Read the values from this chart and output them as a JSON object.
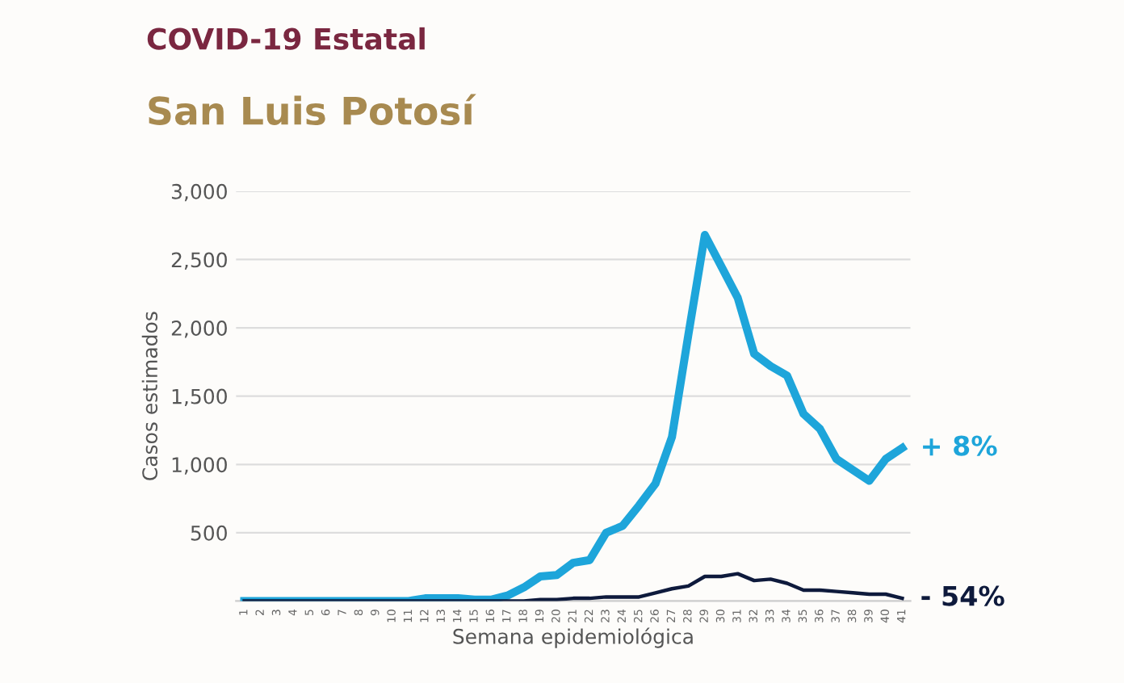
{
  "chart_data": {
    "type": "line",
    "title": "COVID-19 Estatal",
    "subtitle": "San Luis Potosí",
    "xlabel": "Semana epidemiológica",
    "ylabel": "Casos estimados",
    "categories": [
      "1",
      "2",
      "3",
      "4",
      "5",
      "6",
      "7",
      "8",
      "9",
      "10",
      "11",
      "12",
      "13",
      "14",
      "15",
      "16",
      "17",
      "18",
      "19",
      "20",
      "21",
      "22",
      "23",
      "24",
      "25",
      "26",
      "27",
      "28",
      "29",
      "30",
      "31",
      "32",
      "33",
      "34",
      "35",
      "36",
      "37",
      "38",
      "39",
      "40",
      "41"
    ],
    "series": [
      {
        "color": "#1ea5da",
        "values": [
          0,
          0,
          0,
          0,
          0,
          0,
          0,
          0,
          0,
          0,
          0,
          20,
          20,
          20,
          10,
          10,
          40,
          100,
          180,
          190,
          280,
          300,
          500,
          550,
          700,
          860,
          1200,
          1950,
          2680,
          2450,
          2220,
          1810,
          1720,
          1650,
          1370,
          1260,
          1040,
          960,
          880,
          1040,
          1120
        ]
      },
      {
        "color": "#0e1a3c",
        "values": [
          0,
          0,
          0,
          0,
          0,
          0,
          0,
          0,
          0,
          0,
          0,
          0,
          0,
          0,
          0,
          0,
          0,
          0,
          10,
          10,
          20,
          20,
          30,
          30,
          30,
          60,
          90,
          110,
          180,
          180,
          200,
          150,
          160,
          130,
          80,
          80,
          70,
          60,
          50,
          50,
          20
        ]
      }
    ],
    "ylim": [
      0,
      3000
    ],
    "yticks": [
      {
        "value": 500,
        "label": "500"
      },
      {
        "value": 1000,
        "label": "1,000"
      },
      {
        "value": 1500,
        "label": "1,500"
      },
      {
        "value": 2000,
        "label": "2,000"
      },
      {
        "value": 2500,
        "label": "2,500"
      },
      {
        "value": 3000,
        "label": "3,000"
      }
    ],
    "annotations": [
      {
        "text": "+ 8%",
        "x": "41",
        "y": 1120
      },
      {
        "text": "- 54%",
        "x": "41",
        "y": 20
      }
    ],
    "grid": "y",
    "legend": false,
    "marker": "none",
    "line_style": "solid"
  }
}
